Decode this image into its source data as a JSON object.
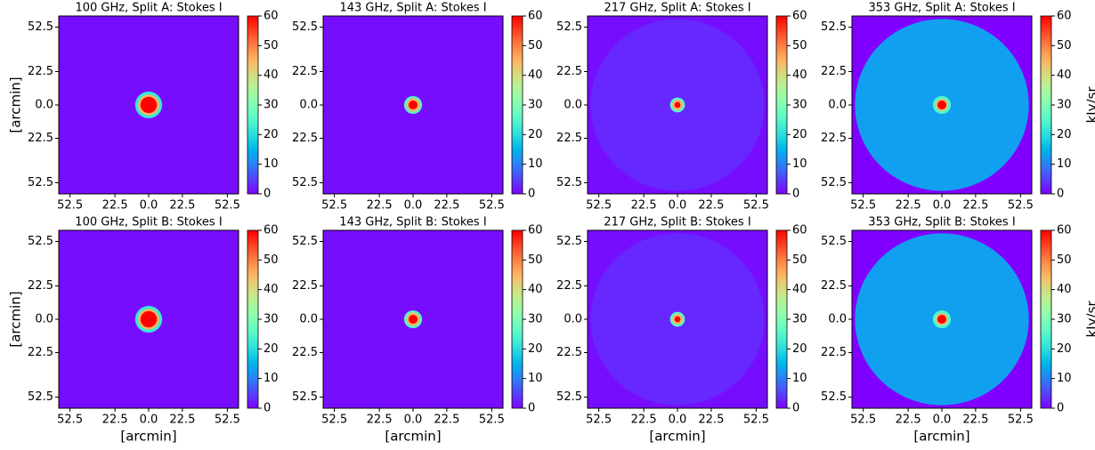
{
  "chart_data": [
    {
      "type": "heatmap",
      "title": "100 GHz, Split A: Stokes I",
      "ylabel": "[arcmin]",
      "colormap": "rainbow",
      "xlim": [
        -60,
        60
      ],
      "ylim": [
        -60,
        60
      ],
      "clim": [
        0,
        60
      ],
      "xticks": [
        {
          "value": -52.5,
          "label": "52.5"
        },
        {
          "value": -22.5,
          "label": "22.5"
        },
        {
          "value": 0,
          "label": "0.0"
        },
        {
          "value": 22.5,
          "label": "22.5"
        },
        {
          "value": 52.5,
          "label": "52.5"
        }
      ],
      "yticks": [
        {
          "value": 52.5,
          "label": "52.5"
        },
        {
          "value": 22.5,
          "label": "22.5"
        },
        {
          "value": 0,
          "label": "0.0"
        },
        {
          "value": -22.5,
          "label": "22.5"
        },
        {
          "value": -52.5,
          "label": "52.5"
        }
      ],
      "cticks": [
        0,
        10,
        20,
        30,
        40,
        50,
        60
      ],
      "background": 1,
      "radii": [
        9,
        7,
        5.5
      ],
      "values": [
        22,
        45,
        60
      ]
    },
    {
      "type": "heatmap",
      "title": "143 GHz, Split A: Stokes I",
      "colormap": "rainbow",
      "xlim": [
        -60,
        60
      ],
      "ylim": [
        -60,
        60
      ],
      "clim": [
        0,
        60
      ],
      "xticks": [
        {
          "value": -52.5,
          "label": "52.5"
        },
        {
          "value": -22.5,
          "label": "22.5"
        },
        {
          "value": 0,
          "label": "0.0"
        },
        {
          "value": 22.5,
          "label": "22.5"
        },
        {
          "value": 52.5,
          "label": "52.5"
        }
      ],
      "yticks": [
        {
          "value": 52.5,
          "label": "52.5"
        },
        {
          "value": 22.5,
          "label": "22.5"
        },
        {
          "value": 0,
          "label": "0.0"
        },
        {
          "value": -22.5,
          "label": "22.5"
        },
        {
          "value": -52.5,
          "label": "52.5"
        }
      ],
      "cticks": [
        0,
        10,
        20,
        30,
        40,
        50,
        60
      ],
      "background": 1,
      "radii": [
        6,
        4.5,
        3
      ],
      "values": [
        25,
        45,
        60
      ]
    },
    {
      "type": "heatmap",
      "title": "217 GHz, Split A: Stokes I",
      "colormap": "rainbow",
      "xlim": [
        -60,
        60
      ],
      "ylim": [
        -60,
        60
      ],
      "clim": [
        0,
        60
      ],
      "xticks": [
        {
          "value": -52.5,
          "label": "52.5"
        },
        {
          "value": -22.5,
          "label": "22.5"
        },
        {
          "value": 0,
          "label": "0.0"
        },
        {
          "value": 22.5,
          "label": "22.5"
        },
        {
          "value": 52.5,
          "label": "52.5"
        }
      ],
      "yticks": [
        {
          "value": 52.5,
          "label": "52.5"
        },
        {
          "value": 22.5,
          "label": "22.5"
        },
        {
          "value": 0,
          "label": "0.0"
        },
        {
          "value": -22.5,
          "label": "22.5"
        },
        {
          "value": -52.5,
          "label": "52.5"
        }
      ],
      "cticks": [
        0,
        10,
        20,
        30,
        40,
        50,
        60
      ],
      "background": 1,
      "radii": [
        58,
        5,
        3.5,
        2
      ],
      "values": [
        3,
        25,
        45,
        60
      ]
    },
    {
      "type": "heatmap",
      "title": "353 GHz, Split A: Stokes I",
      "colorbar_label": "kJy/sr",
      "colormap": "rainbow",
      "xlim": [
        -60,
        60
      ],
      "ylim": [
        -60,
        60
      ],
      "clim": [
        0,
        60
      ],
      "xticks": [
        {
          "value": -52.5,
          "label": "52.5"
        },
        {
          "value": -22.5,
          "label": "22.5"
        },
        {
          "value": 0,
          "label": "0.0"
        },
        {
          "value": 22.5,
          "label": "22.5"
        },
        {
          "value": 52.5,
          "label": "52.5"
        }
      ],
      "yticks": [
        {
          "value": 52.5,
          "label": "52.5"
        },
        {
          "value": 22.5,
          "label": "22.5"
        },
        {
          "value": 0,
          "label": "0.0"
        },
        {
          "value": -22.5,
          "label": "22.5"
        },
        {
          "value": -52.5,
          "label": "52.5"
        }
      ],
      "cticks": [
        0,
        10,
        20,
        30,
        40,
        50,
        60
      ],
      "background": 0,
      "radii": [
        58,
        6,
        4,
        3
      ],
      "values": [
        13,
        25,
        45,
        60
      ]
    },
    {
      "type": "heatmap",
      "title": "100 GHz, Split B: Stokes I",
      "xlabel": "[arcmin]",
      "ylabel": "[arcmin]",
      "colormap": "rainbow",
      "xlim": [
        -60,
        60
      ],
      "ylim": [
        -60,
        60
      ],
      "clim": [
        0,
        60
      ],
      "xticks": [
        {
          "value": -52.5,
          "label": "52.5"
        },
        {
          "value": -22.5,
          "label": "22.5"
        },
        {
          "value": 0,
          "label": "0.0"
        },
        {
          "value": 22.5,
          "label": "22.5"
        },
        {
          "value": 52.5,
          "label": "52.5"
        }
      ],
      "yticks": [
        {
          "value": 52.5,
          "label": "52.5"
        },
        {
          "value": 22.5,
          "label": "22.5"
        },
        {
          "value": 0,
          "label": "0.0"
        },
        {
          "value": -22.5,
          "label": "22.5"
        },
        {
          "value": -52.5,
          "label": "52.5"
        }
      ],
      "cticks": [
        0,
        10,
        20,
        30,
        40,
        50,
        60
      ],
      "background": 1,
      "radii": [
        9,
        7,
        5.5
      ],
      "values": [
        22,
        45,
        60
      ]
    },
    {
      "type": "heatmap",
      "title": "143 GHz, Split B: Stokes I",
      "xlabel": "[arcmin]",
      "colormap": "rainbow",
      "xlim": [
        -60,
        60
      ],
      "ylim": [
        -60,
        60
      ],
      "clim": [
        0,
        60
      ],
      "xticks": [
        {
          "value": -52.5,
          "label": "52.5"
        },
        {
          "value": -22.5,
          "label": "22.5"
        },
        {
          "value": 0,
          "label": "0.0"
        },
        {
          "value": 22.5,
          "label": "22.5"
        },
        {
          "value": 52.5,
          "label": "52.5"
        }
      ],
      "yticks": [
        {
          "value": 52.5,
          "label": "52.5"
        },
        {
          "value": 22.5,
          "label": "22.5"
        },
        {
          "value": 0,
          "label": "0.0"
        },
        {
          "value": -22.5,
          "label": "22.5"
        },
        {
          "value": -52.5,
          "label": "52.5"
        }
      ],
      "cticks": [
        0,
        10,
        20,
        30,
        40,
        50,
        60
      ],
      "background": 1,
      "radii": [
        6,
        4.5,
        3
      ],
      "values": [
        25,
        45,
        60
      ]
    },
    {
      "type": "heatmap",
      "title": "217 GHz, Split B: Stokes I",
      "xlabel": "[arcmin]",
      "colormap": "rainbow",
      "xlim": [
        -60,
        60
      ],
      "ylim": [
        -60,
        60
      ],
      "clim": [
        0,
        60
      ],
      "xticks": [
        {
          "value": -52.5,
          "label": "52.5"
        },
        {
          "value": -22.5,
          "label": "22.5"
        },
        {
          "value": 0,
          "label": "0.0"
        },
        {
          "value": 22.5,
          "label": "22.5"
        },
        {
          "value": 52.5,
          "label": "52.5"
        }
      ],
      "yticks": [
        {
          "value": 52.5,
          "label": "52.5"
        },
        {
          "value": 22.5,
          "label": "22.5"
        },
        {
          "value": 0,
          "label": "0.0"
        },
        {
          "value": -22.5,
          "label": "22.5"
        },
        {
          "value": -52.5,
          "label": "52.5"
        }
      ],
      "cticks": [
        0,
        10,
        20,
        30,
        40,
        50,
        60
      ],
      "background": 1,
      "radii": [
        58,
        5,
        3.5,
        2
      ],
      "values": [
        3,
        25,
        45,
        60
      ]
    },
    {
      "type": "heatmap",
      "title": "353 GHz, Split B: Stokes I",
      "xlabel": "[arcmin]",
      "colorbar_label": "kJy/sr",
      "colormap": "rainbow",
      "xlim": [
        -60,
        60
      ],
      "ylim": [
        -60,
        60
      ],
      "clim": [
        0,
        60
      ],
      "xticks": [
        {
          "value": -52.5,
          "label": "52.5"
        },
        {
          "value": -22.5,
          "label": "22.5"
        },
        {
          "value": 0,
          "label": "0.0"
        },
        {
          "value": 22.5,
          "label": "22.5"
        },
        {
          "value": 52.5,
          "label": "52.5"
        }
      ],
      "yticks": [
        {
          "value": 52.5,
          "label": "52.5"
        },
        {
          "value": 22.5,
          "label": "22.5"
        },
        {
          "value": 0,
          "label": "0.0"
        },
        {
          "value": -22.5,
          "label": "22.5"
        },
        {
          "value": -52.5,
          "label": "52.5"
        }
      ],
      "cticks": [
        0,
        10,
        20,
        30,
        40,
        50,
        60
      ],
      "background": 0,
      "radii": [
        58,
        6,
        4,
        3
      ],
      "values": [
        13,
        25,
        45,
        60
      ]
    }
  ]
}
